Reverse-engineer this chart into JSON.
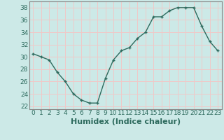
{
  "x": [
    0,
    1,
    2,
    3,
    4,
    5,
    6,
    7,
    8,
    9,
    10,
    11,
    12,
    13,
    14,
    15,
    16,
    17,
    18,
    19,
    20,
    21,
    22,
    23
  ],
  "y": [
    30.5,
    30.0,
    29.5,
    27.5,
    26.0,
    24.0,
    23.0,
    22.5,
    22.5,
    26.5,
    29.5,
    31.0,
    31.5,
    33.0,
    34.0,
    36.5,
    36.5,
    37.5,
    38.0,
    38.0,
    38.0,
    35.0,
    32.5,
    31.0
  ],
  "line_color": "#2e6b5e",
  "marker": "+",
  "bg_color": "#cce9e7",
  "grid_color": "#f0c8c8",
  "xlabel": "Humidex (Indice chaleur)",
  "xlim": [
    -0.5,
    23.5
  ],
  "ylim": [
    21.5,
    39
  ],
  "yticks": [
    22,
    24,
    26,
    28,
    30,
    32,
    34,
    36,
    38
  ],
  "xticks": [
    0,
    1,
    2,
    3,
    4,
    5,
    6,
    7,
    8,
    9,
    10,
    11,
    12,
    13,
    14,
    15,
    16,
    17,
    18,
    19,
    20,
    21,
    22,
    23
  ],
  "tick_fontsize": 6.5,
  "xlabel_fontsize": 8,
  "linewidth": 1.0,
  "markersize": 3.5,
  "spine_color": "#888888"
}
